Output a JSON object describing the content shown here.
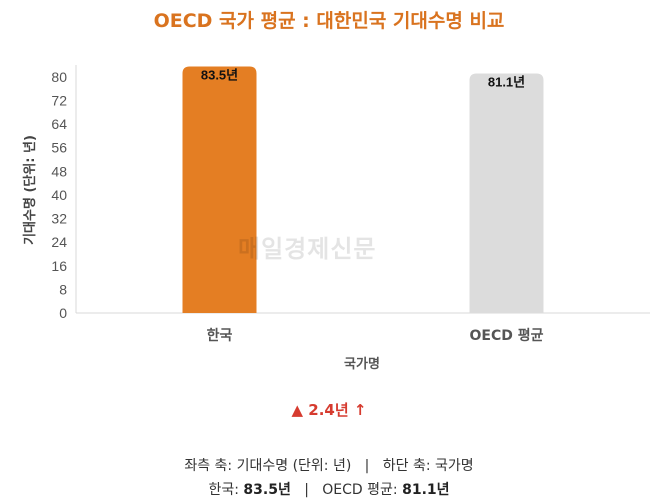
{
  "chart_data": {
    "type": "bar",
    "title": "OECD 국가 평균 : 대한민국 기대수명 비교",
    "categories": [
      "한국",
      "OECD 평균"
    ],
    "values": [
      83.5,
      81.1
    ],
    "value_labels": [
      "83.5년",
      "81.1년"
    ],
    "bar_colors": [
      "#E47E23",
      "#DCDCDC"
    ],
    "xlabel": "국가명",
    "ylabel": "기대수명 (단위: 년)",
    "ylim": [
      0,
      84
    ],
    "yticks": [
      0,
      8,
      16,
      24,
      32,
      40,
      48,
      56,
      64,
      72,
      80
    ],
    "grid": false
  },
  "watermark": "매일경제신문",
  "delta": {
    "arrow_up": "▲",
    "text": "2.4년 ↑",
    "color": "#D63B2F"
  },
  "footer": {
    "axes_left_label": "좌측 축:",
    "axes_left_value": "기대수명 (단위: 년)",
    "separator": "|",
    "axes_bottom_label": "하단 축:",
    "axes_bottom_value": "국가명",
    "korea_label": "한국:",
    "korea_value": "83.5년",
    "oecd_label": "OECD 평균:",
    "oecd_value": "81.1년"
  }
}
